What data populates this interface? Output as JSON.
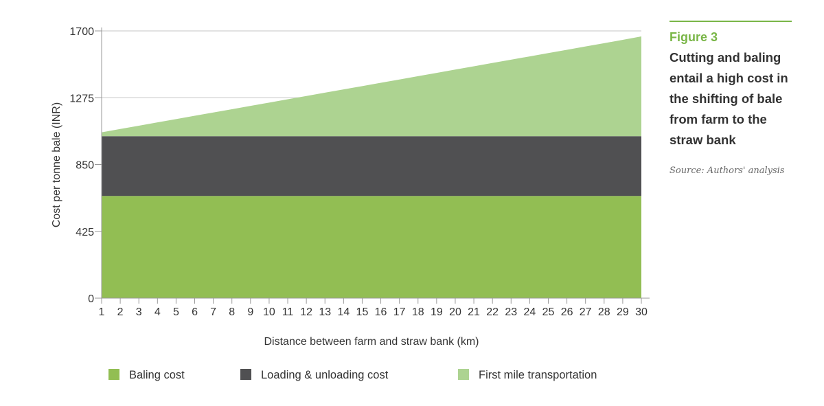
{
  "chart_data": {
    "type": "area",
    "stacked": true,
    "x": [
      1,
      2,
      3,
      4,
      5,
      6,
      7,
      8,
      9,
      10,
      11,
      12,
      13,
      14,
      15,
      16,
      17,
      18,
      19,
      20,
      21,
      22,
      23,
      24,
      25,
      26,
      27,
      28,
      29,
      30
    ],
    "series": [
      {
        "name": "Baling cost",
        "color": "#92be53",
        "values": [
          650,
          650,
          650,
          650,
          650,
          650,
          650,
          650,
          650,
          650,
          650,
          650,
          650,
          650,
          650,
          650,
          650,
          650,
          650,
          650,
          650,
          650,
          650,
          650,
          650,
          650,
          650,
          650,
          650,
          650
        ]
      },
      {
        "name": "Loading & unloading cost",
        "color": "#505052",
        "values": [
          380,
          380,
          380,
          380,
          380,
          380,
          380,
          380,
          380,
          380,
          380,
          380,
          380,
          380,
          380,
          380,
          380,
          380,
          380,
          380,
          380,
          380,
          380,
          380,
          380,
          380,
          380,
          380,
          380,
          380
        ]
      },
      {
        "name": "First mile transportation",
        "color": "#add391",
        "values": [
          25,
          46,
          67,
          88,
          109,
          130,
          151,
          172,
          193,
          214,
          235,
          256,
          277,
          298,
          319,
          340,
          361,
          382,
          403,
          424,
          445,
          466,
          487,
          508,
          529,
          550,
          571,
          592,
          613,
          635
        ]
      }
    ],
    "xlabel": "Distance between farm and straw bank (km)",
    "ylabel": "Cost per tonne bale (INR)",
    "ylim": [
      0,
      1700
    ],
    "yticks": [
      0,
      425,
      850,
      1275,
      1700
    ],
    "grid": true,
    "legend_position": "bottom"
  },
  "sidebar": {
    "figure_label": "Figure 3",
    "caption": "Cutting and baling entail a high cost in the shifting of bale from farm to the straw bank",
    "source": "Source: Authors' analysis"
  }
}
